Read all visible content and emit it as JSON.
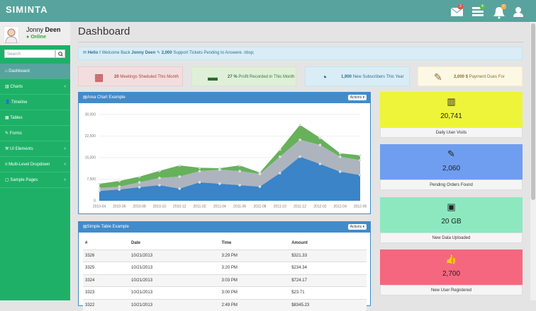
{
  "header": {
    "brand": "SIMINTA",
    "badges": [
      3,
      4,
      7
    ]
  },
  "sidebar": {
    "user": {
      "first": "Jonny",
      "last": "Deen",
      "status": "Online"
    },
    "search": "Search",
    "menu": [
      "Dashboard",
      "Charts",
      "Timeline",
      "Tables",
      "Forms",
      "UI Elements",
      "Multi-Level Dropdown",
      "Sample Pages"
    ]
  },
  "page_title": "Dashboard",
  "alert": {
    "greeting": "Hello !",
    "text1": "Welcome Back",
    "name": "Jonny Deen",
    "count": "2,000",
    "text2": "Support Tickets Pending to Answere. nbsp;"
  },
  "stats": [
    {
      "value": "20",
      "label": "Meetings Sheduled This Month"
    },
    {
      "value": "27 %",
      "label": "Profit Recorded in This Month"
    },
    {
      "value": "1,900",
      "label": "New Subscribers This Year"
    },
    {
      "value": "2,000 $",
      "label": "Payment Dues For Rejected Items"
    }
  ],
  "chart_data": {
    "type": "area",
    "title": "Area Chart Example",
    "actions": "Actions",
    "stacked": true,
    "categories": [
      "2010-04",
      "2010-06",
      "2010-08",
      "2010-10",
      "2010-12",
      "2011-02",
      "2011-04",
      "2011-06",
      "2011-08",
      "2011-10",
      "2011-12",
      "2012-02",
      "2012-04",
      "2012-06"
    ],
    "series": [
      {
        "color": "#2f7dc4",
        "values": [
          3400,
          3900,
          4700,
          5400,
          4200,
          6400,
          5900,
          5400,
          4900,
          9600,
          15300,
          12800,
          10100,
          8900
        ]
      },
      {
        "color": "#a9b0ba",
        "values": [
          1000,
          1000,
          1700,
          2500,
          4200,
          3900,
          4900,
          4900,
          4400,
          5700,
          5900,
          6600,
          5200,
          5200
        ]
      },
      {
        "color": "#5fad52",
        "values": [
          1500,
          2000,
          2000,
          2500,
          3900,
          1200,
          500,
          2000,
          500,
          2500,
          5200,
          2500,
          1200,
          1700
        ]
      }
    ],
    "ylim": [
      0,
      30000
    ],
    "yticks": [
      0,
      {
        "value": 7500,
        "label": "7,500"
      },
      {
        "value": 15000,
        "label": "15,000"
      },
      {
        "value": 22500,
        "label": "22,500"
      },
      {
        "value": 30000,
        "label": "30,000"
      }
    ],
    "grid": true
  },
  "table": {
    "title": "Simple Table Example",
    "actions": "Actions",
    "columns": [
      "#",
      "Date",
      "Time",
      "Amount"
    ],
    "rows": [
      [
        "3326",
        "10/21/2013",
        "3:29 PM",
        "$321.33"
      ],
      [
        "3325",
        "10/21/2013",
        "3:20 PM",
        "$234.34"
      ],
      [
        "3324",
        "10/21/2013",
        "3:03 PM",
        "$724.17"
      ],
      [
        "3323",
        "10/21/2013",
        "3:00 PM",
        "$23.71"
      ],
      [
        "3322",
        "10/21/2013",
        "2:49 PM",
        "$8345.23"
      ]
    ]
  },
  "tiles": [
    {
      "value": "20,741",
      "label": "Daily User Visits"
    },
    {
      "value": "2,060",
      "label": "Pending Orders Found"
    },
    {
      "value": "20 GB",
      "label": "New Data Uploaded"
    },
    {
      "value": "2,700",
      "label": "New User Registered"
    }
  ]
}
